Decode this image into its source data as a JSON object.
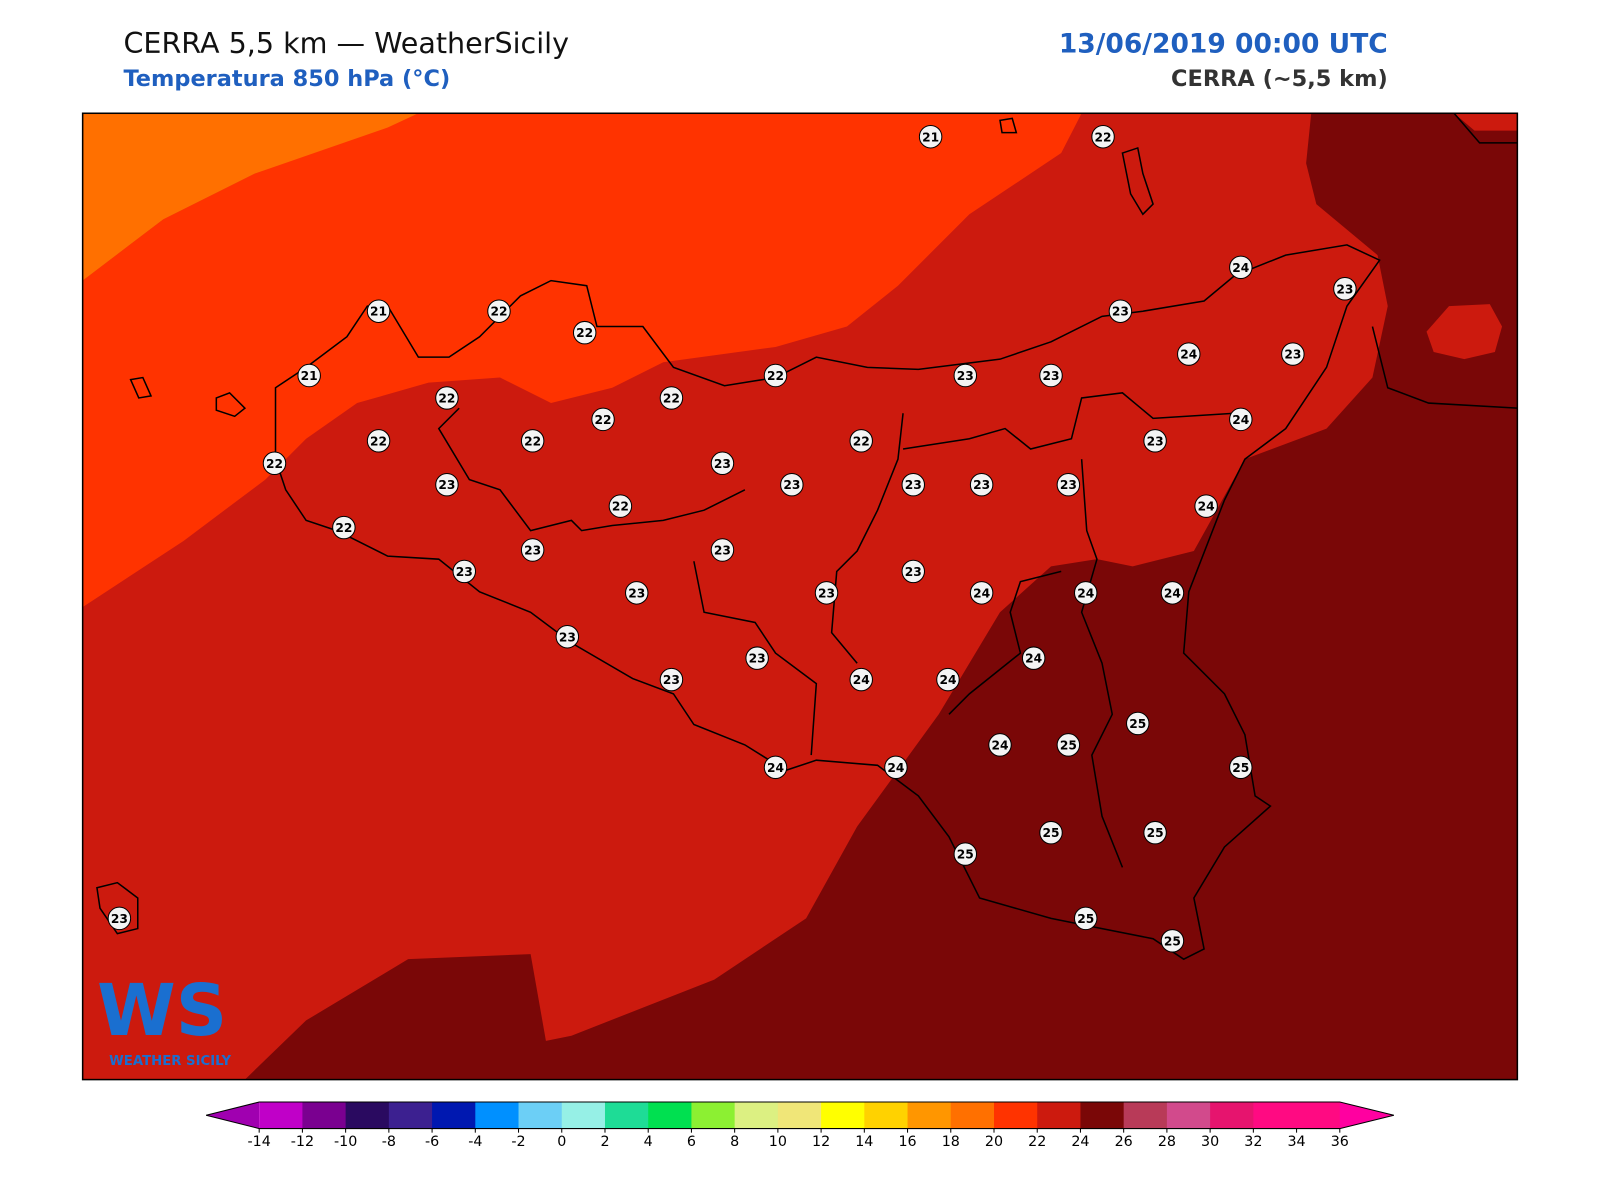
{
  "header": {
    "title": "CERRA 5,5 km — WeatherSicily",
    "subtitle": "Temperatura 850 hPa (°C)",
    "date": "13/06/2019 00:00 UTC",
    "model": "CERRA (~5,5 km)"
  },
  "map": {
    "zone_colors": [
      "#ff7000",
      "#ff3300",
      "#cc1a0e",
      "#7a0707"
    ],
    "stations": [
      21,
      22,
      24,
      23,
      21,
      22,
      22,
      23,
      21,
      22,
      23,
      23,
      24,
      23,
      22,
      22,
      22,
      24,
      22,
      22,
      22,
      23,
      22,
      23,
      23,
      23,
      23,
      23,
      23,
      22,
      24,
      22,
      23,
      23,
      23,
      23,
      23,
      23,
      24,
      24,
      24,
      23,
      24,
      23,
      23,
      24,
      24,
      25,
      24,
      25,
      24,
      24,
      25,
      25,
      25,
      25,
      23,
      25,
      25
    ]
  },
  "logo": {
    "text": "WS",
    "subtitle": "WEATHER SICILY"
  },
  "colorbar": {
    "ticks": [
      -14,
      -12,
      -10,
      -8,
      -6,
      -4,
      -2,
      0,
      2,
      4,
      6,
      8,
      10,
      12,
      14,
      16,
      18,
      20,
      22,
      24,
      26,
      28,
      30,
      32,
      34,
      36
    ],
    "colors": [
      "#a000b0",
      "#c000c8",
      "#7a0090",
      "#2a0a60",
      "#3c2090",
      "#0018b0",
      "#0090ff",
      "#6ccff6",
      "#96f0e6",
      "#1edc96",
      "#00e050",
      "#8cf032",
      "#dcf082",
      "#f0e678",
      "#ffff00",
      "#ffd200",
      "#ff9600",
      "#ff7000",
      "#ff3300",
      "#cc1a0e",
      "#7a0707",
      "#b83a58",
      "#d24a8c",
      "#e6146e",
      "#ff0a82",
      "#ff0a82",
      "#ff00a0"
    ]
  }
}
